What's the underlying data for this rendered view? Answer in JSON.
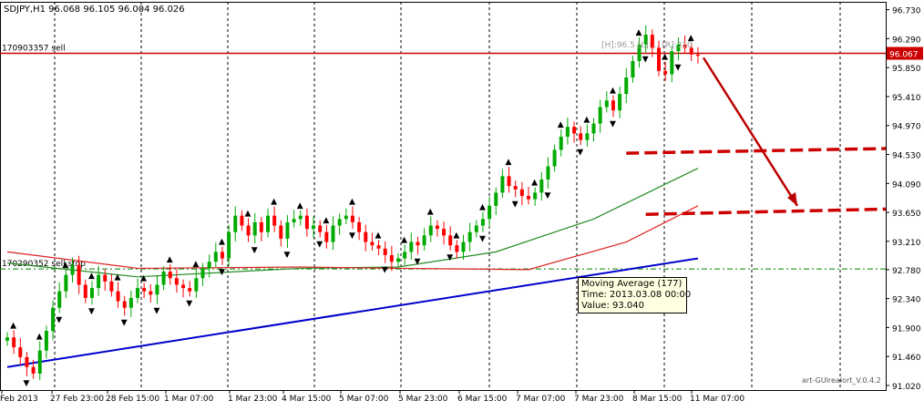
{
  "header": {
    "symbol_label": "SDJPY,H1",
    "ohlc": "96.068 96.105 96.004 96.026"
  },
  "watermark": "art-GUIrealort_V.0.4.2",
  "order_lines": [
    {
      "label": "170903357 sell",
      "price": 96.067,
      "color": "#cc0000"
    },
    {
      "label": "170290352 sell stop",
      "price": 92.79,
      "color": "#008000"
    }
  ],
  "price_badge": "96.067",
  "hl_label": "[H]:96.5 [L]:... [R]:310",
  "tooltip": {
    "title": "Moving Average (177)",
    "time": "Time: 2013.03.08 00:00",
    "value": "Value: 93.040"
  },
  "chart_data": {
    "type": "line",
    "instrument": "SDJPY",
    "timeframe": "H1",
    "ylim": [
      90.95,
      96.85
    ],
    "y_ticks": [
      96.73,
      96.29,
      95.85,
      95.41,
      94.97,
      94.53,
      94.09,
      93.65,
      93.21,
      92.78,
      92.34,
      91.9,
      91.46,
      91.02
    ],
    "x_ticks": [
      "Feb 2013",
      "27 Feb 23:00",
      "28 Feb 15:00",
      "1 Mar 07:00",
      "1 Mar 23:00",
      "4 Mar 15:00",
      "5 Mar 07:00",
      "5 Mar 23:00",
      "6 Mar 15:00",
      "7 Mar 07:00",
      "7 Mar 23:00",
      "8 Mar 15:00",
      "11 Mar 07:00"
    ],
    "close": [
      91.75,
      91.6,
      91.45,
      91.3,
      91.2,
      91.55,
      91.85,
      92.2,
      92.45,
      92.7,
      92.85,
      92.55,
      92.35,
      92.5,
      92.7,
      92.6,
      92.45,
      92.3,
      92.2,
      92.35,
      92.5,
      92.45,
      92.4,
      92.55,
      92.75,
      92.65,
      92.55,
      92.5,
      92.45,
      92.65,
      92.8,
      92.9,
      93.05,
      92.95,
      93.35,
      93.6,
      93.45,
      93.3,
      93.5,
      93.35,
      93.6,
      93.45,
      93.25,
      93.5,
      93.55,
      93.6,
      93.4,
      93.45,
      93.35,
      93.2,
      93.45,
      93.55,
      93.6,
      93.5,
      93.35,
      93.2,
      93.15,
      93.1,
      93.0,
      92.9,
      92.95,
      93.05,
      93.2,
      93.15,
      93.3,
      93.45,
      93.4,
      93.3,
      93.15,
      93.05,
      93.2,
      93.35,
      93.45,
      93.55,
      93.75,
      93.95,
      94.2,
      94.05,
      94.0,
      93.9,
      93.85,
      93.95,
      94.15,
      94.35,
      94.6,
      94.8,
      94.95,
      94.85,
      94.75,
      94.85,
      95.0,
      95.25,
      95.35,
      95.2,
      95.45,
      95.7,
      95.95,
      96.2,
      96.35,
      96.15,
      95.8,
      95.75,
      96.1,
      96.2,
      96.15,
      96.05,
      96.03
    ],
    "series": [
      {
        "name": "Moving Average (177)",
        "color": "#228b22",
        "points": [
          [
            0,
            92.88
          ],
          [
            20,
            92.67
          ],
          [
            45,
            92.8
          ],
          [
            60,
            92.82
          ],
          [
            75,
            93.05
          ],
          [
            90,
            93.55
          ],
          [
            106,
            94.32
          ]
        ]
      },
      {
        "name": "",
        "color": "#dd2222",
        "points": [
          [
            0,
            93.05
          ],
          [
            20,
            92.8
          ],
          [
            45,
            92.82
          ],
          [
            60,
            92.8
          ],
          [
            80,
            92.78
          ],
          [
            95,
            93.2
          ],
          [
            106,
            93.75
          ]
        ]
      },
      {
        "name": "",
        "color": "#0000cc",
        "points": [
          [
            0,
            91.3
          ],
          [
            106,
            92.95
          ]
        ]
      }
    ],
    "levels": [
      {
        "kind": "dashed",
        "color": "#cc0000",
        "from": [
          95,
          94.55
        ],
        "to": [
          106,
          94.62
        ]
      },
      {
        "kind": "dashed",
        "color": "#cc0000",
        "from": [
          98,
          93.62
        ],
        "to": [
          106,
          93.7
        ]
      }
    ],
    "grid": "vertical-dashed"
  }
}
